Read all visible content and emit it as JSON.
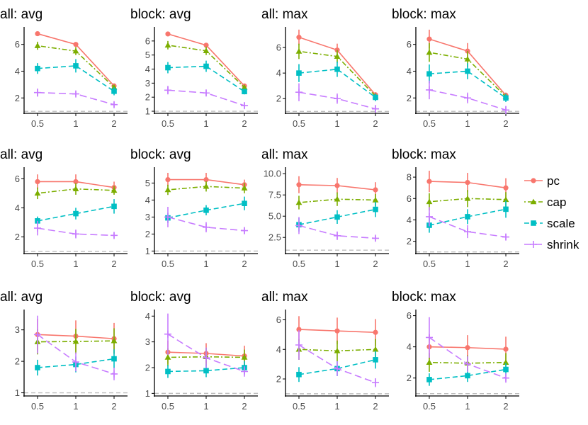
{
  "colors": {
    "pc": "#F8766D",
    "cap": "#7CAE00",
    "scale": "#00BFC4",
    "shrink": "#C77CFF",
    "reference": "#bdbdbd",
    "axis": "#000000"
  },
  "legend": {
    "items": [
      {
        "key": "pc",
        "label": "pc",
        "marker": "circle",
        "dash": "solid"
      },
      {
        "key": "cap",
        "label": "cap",
        "marker": "triangle",
        "dash": "dotdash"
      },
      {
        "key": "scale",
        "label": "scale",
        "marker": "square",
        "dash": "dash"
      },
      {
        "key": "shrink",
        "label": "shrink",
        "marker": "plus",
        "dash": "longdash"
      }
    ]
  },
  "chart_data": [
    {
      "type": "line",
      "title": "all: avg",
      "x": [
        0.5,
        1,
        2
      ],
      "x_ticks": [
        "0.5",
        "1",
        "2"
      ],
      "ylim": [
        0.85,
        7.2
      ],
      "y_ticks": [
        "2",
        "4",
        "6"
      ],
      "reference_line": 1,
      "series": [
        {
          "name": "pc",
          "values": [
            6.8,
            6.0,
            2.9
          ],
          "err": [
            0.1,
            0.1,
            0.1
          ]
        },
        {
          "name": "cap",
          "values": [
            5.9,
            5.5,
            2.8
          ],
          "err": [
            0.3,
            0.3,
            0.1
          ]
        },
        {
          "name": "scale",
          "values": [
            4.2,
            4.4,
            2.5
          ],
          "err": [
            0.4,
            0.5,
            0.3
          ]
        },
        {
          "name": "shrink",
          "values": [
            2.4,
            2.3,
            1.5
          ],
          "err": [
            0.3,
            0.2,
            0.2
          ]
        }
      ]
    },
    {
      "type": "line",
      "title": "block: avg",
      "x": [
        0.5,
        1,
        2
      ],
      "x_ticks": [
        "0.5",
        "1",
        "2"
      ],
      "ylim": [
        0.85,
        6.9
      ],
      "y_ticks": [
        "1",
        "2",
        "3",
        "4",
        "5",
        "6"
      ],
      "reference_line": 1,
      "series": [
        {
          "name": "pc",
          "values": [
            6.5,
            5.7,
            2.8
          ],
          "err": [
            0.1,
            0.1,
            0.1
          ]
        },
        {
          "name": "cap",
          "values": [
            5.7,
            5.3,
            2.7
          ],
          "err": [
            0.3,
            0.3,
            0.1
          ]
        },
        {
          "name": "scale",
          "values": [
            4.1,
            4.2,
            2.4
          ],
          "err": [
            0.4,
            0.4,
            0.2
          ]
        },
        {
          "name": "shrink",
          "values": [
            2.5,
            2.3,
            1.4
          ],
          "err": [
            0.3,
            0.2,
            0.2
          ]
        }
      ]
    },
    {
      "type": "line",
      "title": "all: max",
      "x": [
        0.5,
        1,
        2
      ],
      "x_ticks": [
        "0.5",
        "1",
        "2"
      ],
      "ylim": [
        0.85,
        7.5
      ],
      "y_ticks": [
        "2",
        "4",
        "6"
      ],
      "reference_line": 1,
      "series": [
        {
          "name": "pc",
          "values": [
            6.8,
            5.8,
            2.3
          ],
          "err": [
            0.6,
            0.5,
            0.2
          ]
        },
        {
          "name": "cap",
          "values": [
            5.7,
            5.3,
            2.2
          ],
          "err": [
            0.6,
            0.5,
            0.2
          ]
        },
        {
          "name": "scale",
          "values": [
            4.0,
            4.3,
            2.1
          ],
          "err": [
            0.7,
            0.6,
            0.3
          ]
        },
        {
          "name": "shrink",
          "values": [
            2.5,
            2.0,
            1.2
          ],
          "err": [
            0.7,
            0.4,
            0.3
          ]
        }
      ]
    },
    {
      "type": "line",
      "title": "block: max",
      "x": [
        0.5,
        1,
        2
      ],
      "x_ticks": [
        "0.5",
        "1",
        "2"
      ],
      "ylim": [
        0.85,
        7.2
      ],
      "y_ticks": [
        "2",
        "4",
        "6"
      ],
      "reference_line": 1,
      "series": [
        {
          "name": "pc",
          "values": [
            6.4,
            5.5,
            2.2
          ],
          "err": [
            0.7,
            0.6,
            0.2
          ]
        },
        {
          "name": "cap",
          "values": [
            5.4,
            4.9,
            2.1
          ],
          "err": [
            0.7,
            0.6,
            0.2
          ]
        },
        {
          "name": "scale",
          "values": [
            3.8,
            4.0,
            2.0
          ],
          "err": [
            0.7,
            0.6,
            0.3
          ]
        },
        {
          "name": "shrink",
          "values": [
            2.6,
            2.0,
            1.1
          ],
          "err": [
            0.7,
            0.4,
            0.3
          ]
        }
      ]
    },
    {
      "type": "line",
      "title": "all: avg",
      "x": [
        0.5,
        1,
        2
      ],
      "x_ticks": [
        "0.5",
        "1",
        "2"
      ],
      "ylim": [
        0.85,
        6.7
      ],
      "y_ticks": [
        "2",
        "4",
        "6"
      ],
      "reference_line": 1,
      "series": [
        {
          "name": "pc",
          "values": [
            5.8,
            5.8,
            5.4
          ],
          "err": [
            0.5,
            0.5,
            0.4
          ]
        },
        {
          "name": "cap",
          "values": [
            5.0,
            5.3,
            5.2
          ],
          "err": [
            0.4,
            0.4,
            0.3
          ]
        },
        {
          "name": "scale",
          "values": [
            3.1,
            3.6,
            4.1
          ],
          "err": [
            0.3,
            0.4,
            0.5
          ]
        },
        {
          "name": "shrink",
          "values": [
            2.6,
            2.2,
            2.1
          ],
          "err": [
            0.5,
            0.3,
            0.2
          ]
        }
      ]
    },
    {
      "type": "line",
      "title": "block: avg",
      "x": [
        0.5,
        1,
        2
      ],
      "x_ticks": [
        "0.5",
        "1",
        "2"
      ],
      "ylim": [
        0.85,
        5.85
      ],
      "y_ticks": [
        "1",
        "2",
        "3",
        "4",
        "5"
      ],
      "reference_line": 1,
      "series": [
        {
          "name": "pc",
          "values": [
            5.2,
            5.2,
            4.9
          ],
          "err": [
            0.4,
            0.4,
            0.3
          ]
        },
        {
          "name": "cap",
          "values": [
            4.6,
            4.8,
            4.7
          ],
          "err": [
            0.3,
            0.3,
            0.3
          ]
        },
        {
          "name": "scale",
          "values": [
            2.95,
            3.4,
            3.8
          ],
          "err": [
            0.3,
            0.3,
            0.4
          ]
        },
        {
          "name": "shrink",
          "values": [
            3.0,
            2.4,
            2.2
          ],
          "err": [
            0.6,
            0.3,
            0.2
          ]
        }
      ]
    },
    {
      "type": "line",
      "title": "all: max",
      "x": [
        0.5,
        1,
        2
      ],
      "x_ticks": [
        "0.5",
        "1",
        "2"
      ],
      "ylim": [
        0.6,
        10.6
      ],
      "y_ticks": [
        "2.5",
        "5.0",
        "7.5",
        "10.0"
      ],
      "reference_line": 1,
      "series": [
        {
          "name": "pc",
          "values": [
            8.7,
            8.6,
            8.1
          ],
          "err": [
            1.0,
            0.9,
            0.9
          ]
        },
        {
          "name": "cap",
          "values": [
            6.6,
            7.0,
            6.9
          ],
          "err": [
            0.8,
            0.8,
            0.7
          ]
        },
        {
          "name": "scale",
          "values": [
            4.0,
            4.9,
            5.8
          ],
          "err": [
            0.8,
            0.8,
            0.9
          ]
        },
        {
          "name": "shrink",
          "values": [
            3.9,
            2.7,
            2.4
          ],
          "err": [
            1.0,
            0.5,
            0.3
          ]
        }
      ]
    },
    {
      "type": "line",
      "title": "block: max",
      "x": [
        0.5,
        1,
        2
      ],
      "x_ticks": [
        "0.5",
        "1",
        "2"
      ],
      "ylim": [
        0.85,
        8.8
      ],
      "y_ticks": [
        "2",
        "4",
        "6",
        "8"
      ],
      "reference_line": 1,
      "series": [
        {
          "name": "pc",
          "values": [
            7.6,
            7.5,
            7.0
          ],
          "err": [
            1.0,
            0.9,
            0.9
          ]
        },
        {
          "name": "cap",
          "values": [
            5.7,
            6.0,
            5.9
          ],
          "err": [
            0.8,
            0.8,
            0.7
          ]
        },
        {
          "name": "scale",
          "values": [
            3.5,
            4.3,
            5.0
          ],
          "err": [
            0.7,
            0.7,
            0.8
          ]
        },
        {
          "name": "shrink",
          "values": [
            4.3,
            2.9,
            2.4
          ],
          "err": [
            0.9,
            0.6,
            0.3
          ]
        }
      ]
    },
    {
      "type": "line",
      "title": "all: avg",
      "x": [
        0.5,
        1,
        2
      ],
      "x_ticks": [
        "0.5",
        "1",
        "2"
      ],
      "ylim": [
        0.9,
        3.6
      ],
      "y_ticks": [
        "1",
        "2",
        "3"
      ],
      "reference_line": 1,
      "series": [
        {
          "name": "pc",
          "values": [
            2.85,
            2.8,
            2.72
          ],
          "err": [
            0.5,
            0.5,
            0.5
          ]
        },
        {
          "name": "cap",
          "values": [
            2.62,
            2.63,
            2.65
          ],
          "err": [
            0.4,
            0.4,
            0.4
          ]
        },
        {
          "name": "scale",
          "values": [
            1.8,
            1.9,
            2.08
          ],
          "err": [
            0.25,
            0.25,
            0.3
          ]
        },
        {
          "name": "shrink",
          "values": [
            2.85,
            1.98,
            1.6
          ],
          "err": [
            0.6,
            0.3,
            0.2
          ]
        }
      ]
    },
    {
      "type": "line",
      "title": "block: avg",
      "x": [
        0.5,
        1,
        2
      ],
      "x_ticks": [
        "0.5",
        "1",
        "2"
      ],
      "ylim": [
        0.9,
        4.2
      ],
      "y_ticks": [
        "1",
        "2",
        "3",
        "4"
      ],
      "reference_line": 1,
      "series": [
        {
          "name": "pc",
          "values": [
            2.6,
            2.55,
            2.45
          ],
          "err": [
            0.45,
            0.4,
            0.4
          ]
        },
        {
          "name": "cap",
          "values": [
            2.4,
            2.42,
            2.4
          ],
          "err": [
            0.35,
            0.35,
            0.3
          ]
        },
        {
          "name": "scale",
          "values": [
            1.85,
            1.88,
            2.0
          ],
          "err": [
            0.25,
            0.25,
            0.25
          ]
        },
        {
          "name": "shrink",
          "values": [
            3.3,
            2.38,
            1.85
          ],
          "err": [
            0.8,
            0.4,
            0.2
          ]
        }
      ]
    },
    {
      "type": "line",
      "title": "all: max",
      "x": [
        0.5,
        1,
        2
      ],
      "x_ticks": [
        "0.5",
        "1",
        "2"
      ],
      "ylim": [
        0.85,
        6.6
      ],
      "y_ticks": [
        "2",
        "4",
        "6"
      ],
      "reference_line": 1,
      "series": [
        {
          "name": "pc",
          "values": [
            5.35,
            5.25,
            5.15
          ],
          "err": [
            0.9,
            0.9,
            0.9
          ]
        },
        {
          "name": "cap",
          "values": [
            4.0,
            3.9,
            4.0
          ],
          "err": [
            0.7,
            0.7,
            0.7
          ]
        },
        {
          "name": "scale",
          "values": [
            2.3,
            2.7,
            3.3
          ],
          "err": [
            0.5,
            0.5,
            0.6
          ]
        },
        {
          "name": "shrink",
          "values": [
            4.3,
            2.7,
            1.75
          ],
          "err": [
            1.0,
            0.5,
            0.3
          ]
        }
      ]
    },
    {
      "type": "line",
      "title": "block: max",
      "x": [
        0.5,
        1,
        2
      ],
      "x_ticks": [
        "0.5",
        "1",
        "2"
      ],
      "ylim": [
        0.85,
        6.3
      ],
      "y_ticks": [
        "2",
        "4",
        "6"
      ],
      "reference_line": 1,
      "series": [
        {
          "name": "pc",
          "values": [
            4.0,
            3.95,
            3.85
          ],
          "err": [
            0.8,
            0.8,
            0.8
          ]
        },
        {
          "name": "cap",
          "values": [
            3.0,
            2.95,
            3.0
          ],
          "err": [
            0.6,
            0.5,
            0.6
          ]
        },
        {
          "name": "scale",
          "values": [
            1.9,
            2.15,
            2.55
          ],
          "err": [
            0.4,
            0.4,
            0.4
          ]
        },
        {
          "name": "shrink",
          "values": [
            4.6,
            2.9,
            2.0
          ],
          "err": [
            1.3,
            0.5,
            0.3
          ]
        }
      ]
    }
  ]
}
